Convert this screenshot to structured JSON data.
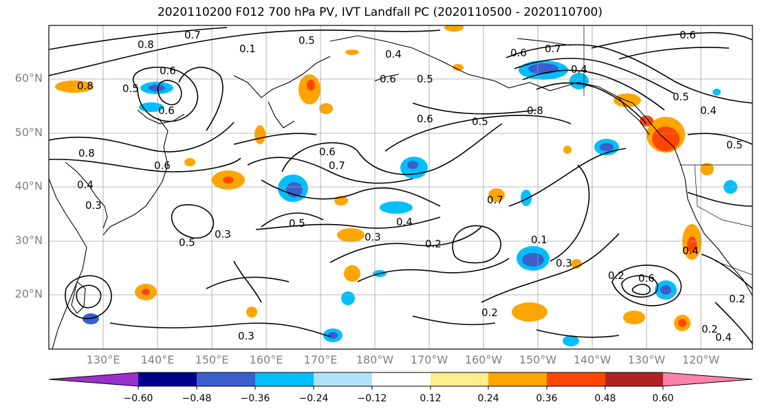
{
  "title": "2020110200 F012 700 hPa PV, IVT Landfall PC (2020110500 - 2020110700)",
  "lat_labels": [
    "60°N",
    "50°N",
    "40°N",
    "30°N",
    "20°N"
  ],
  "lon_labels": [
    "130°E",
    "140°E",
    "150°E",
    "160°E",
    "170°E",
    "180°W",
    "170°W",
    "160°W",
    "150°W",
    "140°W",
    "130°W",
    "120°W"
  ],
  "colorbar": {
    "ticks": [
      "−0.60",
      "−0.48",
      "−0.36",
      "−0.24",
      "−0.12",
      "0.12",
      "0.24",
      "0.36",
      "0.48",
      "0.60"
    ],
    "colors": [
      "#9932cc",
      "#00008b",
      "#3a5fcd",
      "#00bfff",
      "#b0e2ff",
      "#ffffff",
      "#ffec8b",
      "#ffa500",
      "#ff4500",
      "#b22222",
      "#ff82ab"
    ]
  },
  "contour_labels": [
    "0.7",
    "0.5",
    "0.8",
    "0.6",
    "0.1",
    "0.4",
    "0.6",
    "0.5",
    "0.6",
    "0.7",
    "0.4",
    "0.6",
    "0.5",
    "0.8",
    "0.5",
    "0.8",
    "0.6",
    "0.6",
    "0.5",
    "0.4",
    "0.8",
    "0.6",
    "0.6",
    "0.7",
    "0.4",
    "0.3",
    "0.5",
    "0.5",
    "0.3",
    "0.4",
    "0.3",
    "0.2",
    "0.7",
    "0.1",
    "0.3",
    "0.2",
    "0.6",
    "0.2",
    "0.3",
    "0.2",
    "0.2",
    "0.4",
    "0.5",
    "0.4"
  ]
}
